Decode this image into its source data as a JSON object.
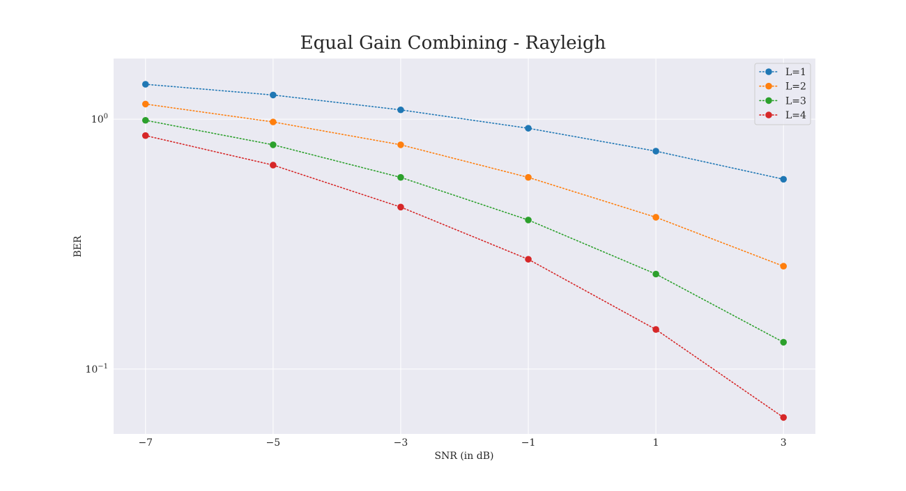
{
  "chart_data": {
    "type": "line",
    "title": "Equal Gain Combining - Rayleigh",
    "xlabel": "SNR (in dB)",
    "ylabel": "BER",
    "yscale": "log",
    "x": [
      -7,
      -5,
      -3,
      -1,
      1,
      3
    ],
    "xticks": [
      "−7",
      "−5",
      "−3",
      "−1",
      "1",
      "3"
    ],
    "xlim": [
      -7.5,
      3.5
    ],
    "ylim": [
      0.055,
      1.75
    ],
    "yticks": [
      {
        "value": 1.0,
        "base": "10",
        "exp": "0"
      },
      {
        "value": 0.1,
        "base": "10",
        "exp": "−1"
      }
    ],
    "grid": true,
    "line_style": "dotted",
    "marker": "circle",
    "legend_position": "top-right",
    "background": "#eaeaf2",
    "series": [
      {
        "name": "L=1",
        "color": "#1f77b4",
        "values": [
          1.38,
          1.25,
          1.09,
          0.92,
          0.745,
          0.575
        ]
      },
      {
        "name": "L=2",
        "color": "#ff7f0e",
        "values": [
          1.15,
          0.975,
          0.79,
          0.585,
          0.405,
          0.258
        ]
      },
      {
        "name": "L=3",
        "color": "#2ca02c",
        "values": [
          0.99,
          0.79,
          0.585,
          0.395,
          0.24,
          0.128
        ]
      },
      {
        "name": "L=4",
        "color": "#d62728",
        "values": [
          0.86,
          0.655,
          0.445,
          0.275,
          0.144,
          0.064
        ]
      }
    ]
  }
}
